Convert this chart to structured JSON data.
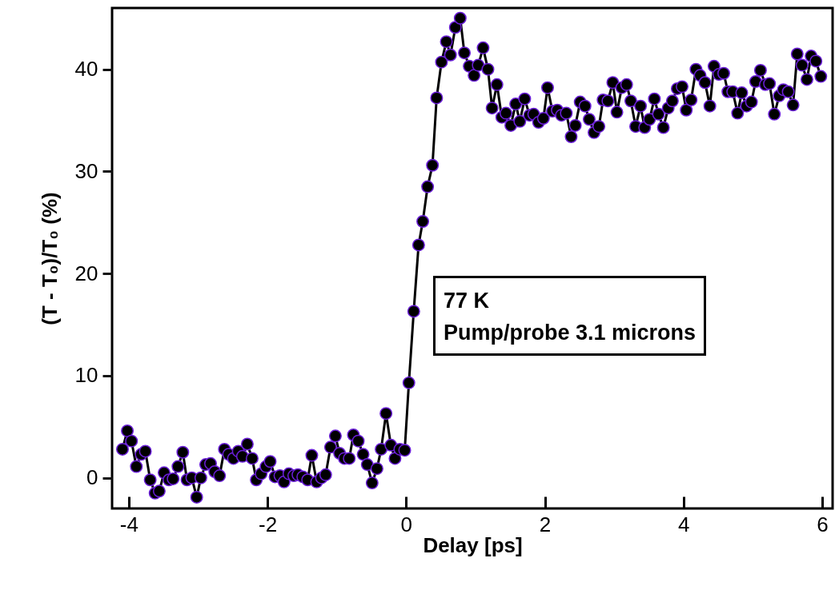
{
  "chart_data": {
    "type": "line",
    "xlabel": "Delay [ps]",
    "ylabel": "(T - T₀)/T₀ (%)",
    "annotations": [
      "77 K",
      "Pump/probe 3.1 microns"
    ],
    "x": [
      -4.09,
      -4.02,
      -3.96,
      -3.89,
      -3.82,
      -3.76,
      -3.69,
      -3.62,
      -3.56,
      -3.49,
      -3.42,
      -3.36,
      -3.29,
      -3.22,
      -3.16,
      -3.09,
      -3.02,
      -2.96,
      -2.89,
      -2.82,
      -2.76,
      -2.69,
      -2.62,
      -2.56,
      -2.49,
      -2.42,
      -2.36,
      -2.29,
      -2.22,
      -2.16,
      -2.09,
      -2.02,
      -1.96,
      -1.89,
      -1.82,
      -1.76,
      -1.69,
      -1.62,
      -1.56,
      -1.49,
      -1.42,
      -1.36,
      -1.29,
      -1.22,
      -1.16,
      -1.09,
      -1.02,
      -0.96,
      -0.89,
      -0.82,
      -0.76,
      -0.69,
      -0.62,
      -0.56,
      -0.49,
      -0.42,
      -0.36,
      -0.29,
      -0.22,
      -0.16,
      -0.09,
      -0.02,
      0.04,
      0.11,
      0.18,
      0.24,
      0.31,
      0.38,
      0.44,
      0.51,
      0.58,
      0.64,
      0.71,
      0.78,
      0.84,
      0.91,
      0.98,
      1.04,
      1.11,
      1.18,
      1.24,
      1.31,
      1.38,
      1.44,
      1.51,
      1.58,
      1.64,
      1.71,
      1.78,
      1.84,
      1.91,
      1.98,
      2.04,
      2.11,
      2.18,
      2.24,
      2.31,
      2.38,
      2.44,
      2.51,
      2.58,
      2.64,
      2.71,
      2.78,
      2.84,
      2.91,
      2.98,
      3.04,
      3.11,
      3.18,
      3.24,
      3.31,
      3.38,
      3.44,
      3.51,
      3.58,
      3.64,
      3.71,
      3.78,
      3.84,
      3.91,
      3.98,
      4.04,
      4.11,
      4.18,
      4.24,
      4.31,
      4.38,
      4.44,
      4.51,
      4.58,
      4.64,
      4.71,
      4.78,
      4.84,
      4.91,
      4.98,
      5.04,
      5.11,
      5.18,
      5.24,
      5.31,
      5.38,
      5.44,
      5.51,
      5.58,
      5.64,
      5.71,
      5.78,
      5.84,
      5.91,
      5.98
    ],
    "series": [
      {
        "color": "#000000",
        "values": [
          2.8,
          4.6,
          3.6,
          1.1,
          2.3,
          2.6,
          -0.2,
          -1.5,
          -1.3,
          0.5,
          -0.2,
          -0.1,
          1.1,
          2.5,
          -0.2,
          0.0,
          -1.9,
          0.0,
          1.3,
          1.4,
          0.6,
          0.2,
          2.8,
          2.3,
          1.9,
          2.6,
          2.1,
          3.3,
          1.9,
          -0.2,
          0.4,
          1.1,
          1.6,
          0.1,
          0.2,
          -0.4,
          0.4,
          0.2,
          0.3,
          0.1,
          -0.2,
          2.2,
          -0.4,
          0.0,
          0.3,
          3.0,
          4.1,
          2.4,
          1.9,
          1.9,
          4.2,
          3.6,
          2.3,
          1.3,
          -0.5,
          0.9,
          2.8,
          6.3,
          3.2,
          1.9,
          2.8,
          2.7,
          9.3,
          16.3,
          22.8,
          25.1,
          28.5,
          30.6,
          37.2,
          40.7,
          42.7,
          41.4,
          44.1,
          45.0,
          41.6,
          40.3,
          39.4,
          40.4,
          42.1,
          40.0,
          36.2,
          38.5,
          35.3,
          35.7,
          34.5,
          36.6,
          34.9,
          37.1,
          35.5,
          35.6,
          34.8,
          35.2,
          38.2,
          35.9,
          36.0,
          35.5,
          35.7,
          33.4,
          34.5,
          36.8,
          36.4,
          35.1,
          33.8,
          34.4,
          37.0,
          36.9,
          38.7,
          35.8,
          38.2,
          38.5,
          36.9,
          34.4,
          36.4,
          34.3,
          35.1,
          37.1,
          35.6,
          34.3,
          36.2,
          36.9,
          38.1,
          38.3,
          36.0,
          37.0,
          40.0,
          39.4,
          38.7,
          36.4,
          40.3,
          39.5,
          39.6,
          37.8,
          37.8,
          35.7,
          37.7,
          36.4,
          36.8,
          38.8,
          39.9,
          38.5,
          38.6,
          35.6,
          37.4,
          38.0,
          37.8,
          36.5,
          41.5,
          40.4,
          39.0,
          41.3,
          40.8,
          39.3
        ]
      }
    ],
    "xlim": [
      -4.24,
      6.15
    ],
    "xticks": [
      -4,
      -2,
      0,
      2,
      4,
      6
    ],
    "ylim": [
      -3,
      46
    ],
    "yticks": [
      0,
      10,
      20,
      30,
      40
    ],
    "marker": "circle",
    "line_style": "solid"
  }
}
